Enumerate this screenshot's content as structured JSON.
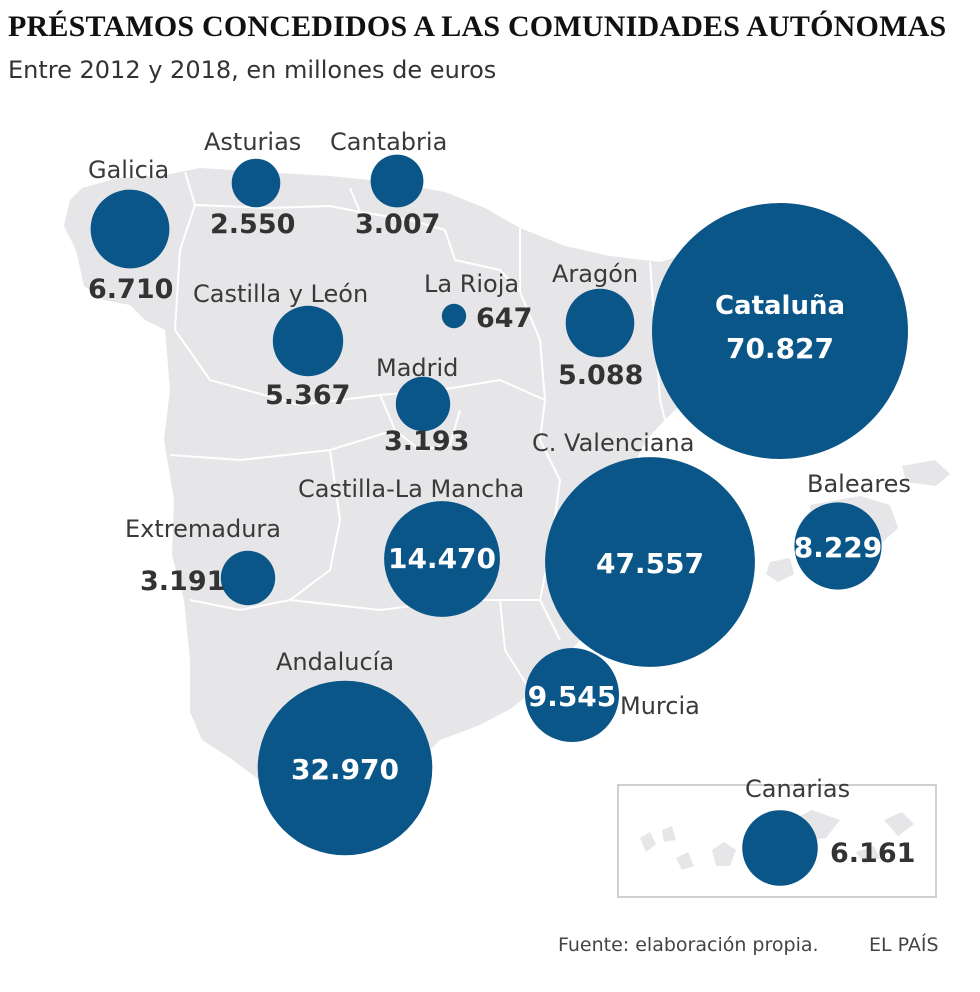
{
  "header": {
    "title": "PRÉSTAMOS CONCEDIDOS A LAS COMUNIDADES AUTÓNOMAS",
    "subtitle": "Entre 2012 y 2018, en millones de euros"
  },
  "colors": {
    "bubble": "#0b5688",
    "land": "#e6e6e9",
    "border": "#ffffff",
    "text_dark": "#333333"
  },
  "regions": [
    {
      "id": "galicia",
      "name": "Galicia",
      "value": 6710,
      "label": "6.710"
    },
    {
      "id": "asturias",
      "name": "Asturias",
      "value": 2550,
      "label": "2.550"
    },
    {
      "id": "cantabria",
      "name": "Cantabria",
      "value": 3007,
      "label": "3.007"
    },
    {
      "id": "castilla-y-leon",
      "name": "Castilla y León",
      "value": 5367,
      "label": "5.367"
    },
    {
      "id": "la-rioja",
      "name": "La Rioja",
      "value": 647,
      "label": "647"
    },
    {
      "id": "aragon",
      "name": "Aragón",
      "value": 5088,
      "label": "5.088"
    },
    {
      "id": "cataluna",
      "name": "Cataluña",
      "value": 70827,
      "label": "70.827"
    },
    {
      "id": "madrid",
      "name": "Madrid",
      "value": 3193,
      "label": "3.193"
    },
    {
      "id": "c-valenciana",
      "name": "C. Valenciana",
      "value": 47557,
      "label": "47.557"
    },
    {
      "id": "baleares",
      "name": "Baleares",
      "value": 8229,
      "label": "8.229"
    },
    {
      "id": "castilla-la-mancha",
      "name": "Castilla-La Mancha",
      "value": 14470,
      "label": "14.470"
    },
    {
      "id": "extremadura",
      "name": "Extremadura",
      "value": 3191,
      "label": "3.191"
    },
    {
      "id": "andalucia",
      "name": "Andalucía",
      "value": 32970,
      "label": "32.970"
    },
    {
      "id": "murcia",
      "name": "Murcia",
      "value": 9545,
      "label": "9.545"
    },
    {
      "id": "canarias",
      "name": "Canarias",
      "value": 6161,
      "label": "6.161"
    }
  ],
  "footer": {
    "source": "Fuente: elaboración propia.",
    "brand": "EL PAÍS"
  }
}
